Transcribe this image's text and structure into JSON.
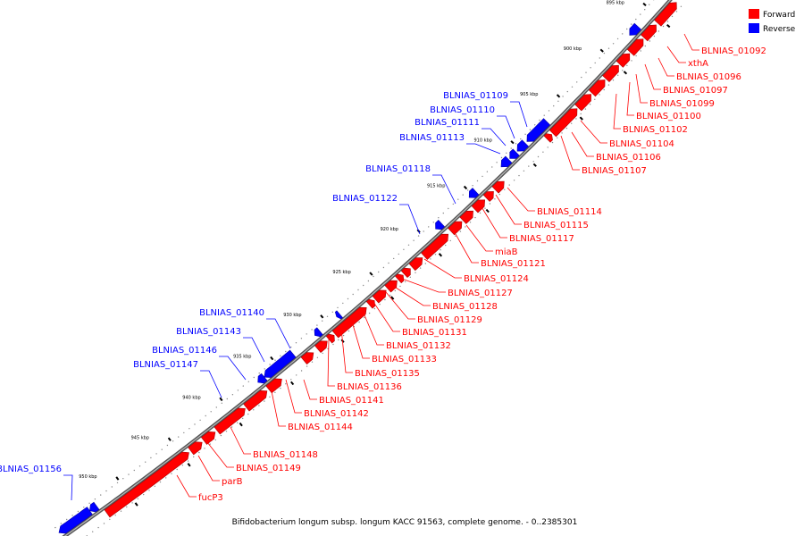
{
  "colors": {
    "forward": "#ff0000",
    "reverse": "#0000ff",
    "backbone": "#666666",
    "text": "#000000"
  },
  "legend": [
    {
      "label": "Forward",
      "color": "#ff0000"
    },
    {
      "label": "Reverse",
      "color": "#0000ff"
    }
  ],
  "caption": "Bifidobacterium longum subsp. longum KACC 91563, complete genome. - 0..2385301",
  "ticks": [
    "895 kbp",
    "900 kbp",
    "905 kbp",
    "910 kbp",
    "915 kbp",
    "920 kbp",
    "925 kbp",
    "930 kbp",
    "935 kbp",
    "940 kbp",
    "945 kbp",
    "950 kbp"
  ],
  "forward_labels": [
    "BLNIAS_01092",
    "xthA",
    "BLNIAS_01096",
    "BLNIAS_01097",
    "BLNIAS_01099",
    "BLNIAS_01100",
    "BLNIAS_01102",
    "BLNIAS_01104",
    "BLNIAS_01106",
    "BLNIAS_01107",
    "BLNIAS_01114",
    "BLNIAS_01115",
    "BLNIAS_01117",
    "miaB",
    "BLNIAS_01121",
    "BLNIAS_01124",
    "BLNIAS_01127",
    "BLNIAS_01128",
    "BLNIAS_01129",
    "BLNIAS_01131",
    "BLNIAS_01132",
    "BLNIAS_01133",
    "BLNIAS_01135",
    "BLNIAS_01136",
    "BLNIAS_01141",
    "BLNIAS_01142",
    "BLNIAS_01144",
    "BLNIAS_01148",
    "BLNIAS_01149",
    "parB",
    "fucP3"
  ],
  "reverse_labels": [
    "BLNIAS_01109",
    "BLNIAS_01110",
    "BLNIAS_01111",
    "BLNIAS_01113",
    "BLNIAS_01118",
    "BLNIAS_01122",
    "BLNIAS_01140",
    "BLNIAS_01143",
    "BLNIAS_01146",
    "BLNIAS_01147",
    "BLNIAS_01156"
  ]
}
